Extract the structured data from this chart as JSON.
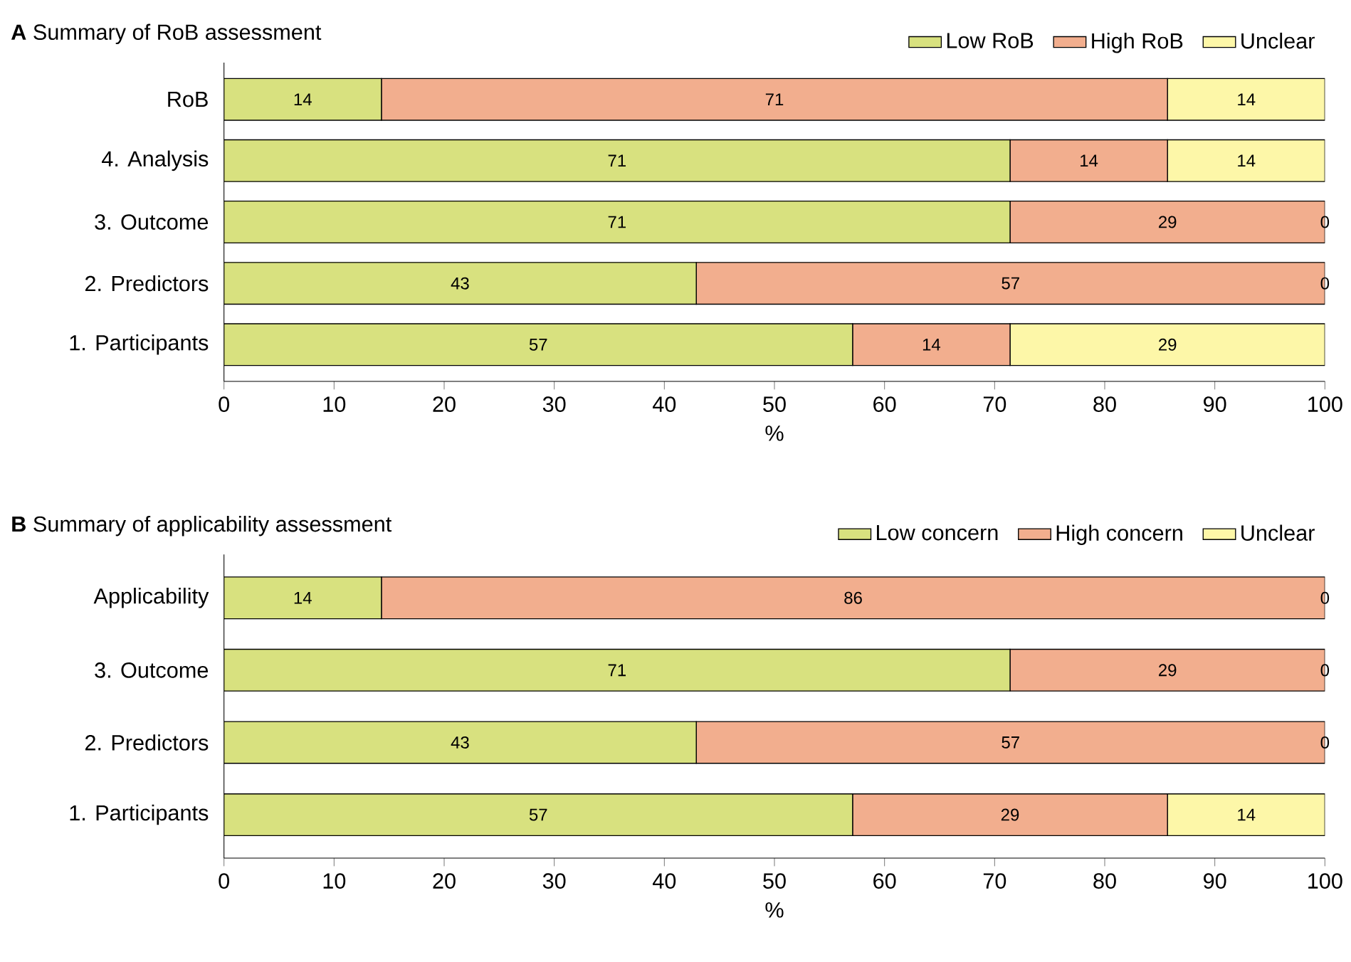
{
  "chart_data": [
    {
      "type": "bar",
      "orientation": "horizontal",
      "stacked": true,
      "title": "**A** Summary of RoB assessment",
      "xlabel": "%",
      "legend": "top right",
      "categories": [
        "RoB",
        "4. Analysis",
        "3. Outcome",
        "2. Predictors",
        "1. Participants"
      ],
      "xlim": [
        0,
        100
      ],
      "xticks": [
        0,
        10,
        20,
        30,
        40,
        50,
        60,
        70,
        80,
        90,
        100
      ],
      "series": [
        {
          "name": "Low RoB",
          "color": "#d8e17f",
          "values": [
            14.3,
            71.4,
            71.4,
            42.9,
            57.1
          ],
          "value_labels": [
            "14",
            "71",
            "71",
            "43",
            "57"
          ]
        },
        {
          "name": "High RoB",
          "color": "#f2ae8e",
          "values": [
            71.4,
            14.3,
            28.6,
            57.1,
            14.3
          ],
          "value_labels": [
            "71",
            "14",
            "29",
            "57",
            "14"
          ]
        },
        {
          "name": "Unclear",
          "color": "#fdf7a8",
          "values": [
            14.3,
            14.3,
            0,
            0,
            28.6
          ],
          "value_labels": [
            "14",
            "14",
            "0",
            "0",
            "29"
          ]
        }
      ]
    },
    {
      "type": "bar",
      "orientation": "horizontal",
      "stacked": true,
      "title": "**B** Summary of applicability assessment",
      "xlabel": "%",
      "legend": "top right",
      "categories": [
        "Applicability",
        "3. Outcome",
        "2. Predictors",
        "1. Participants"
      ],
      "xlim": [
        0,
        100
      ],
      "xticks": [
        0,
        10,
        20,
        30,
        40,
        50,
        60,
        70,
        80,
        90,
        100
      ],
      "series": [
        {
          "name": "Low concern",
          "color": "#d8e17f",
          "values": [
            14.3,
            71.4,
            42.9,
            57.1
          ],
          "value_labels": [
            "14",
            "71",
            "43",
            "57"
          ]
        },
        {
          "name": "High concern",
          "color": "#f2ae8e",
          "values": [
            85.7,
            28.6,
            57.1,
            28.6
          ],
          "value_labels": [
            "86",
            "29",
            "57",
            "29"
          ]
        },
        {
          "name": "Unclear",
          "color": "#fdf7a8",
          "values": [
            0,
            0,
            0,
            14.3
          ],
          "value_labels": [
            "0",
            "0",
            "0",
            "14"
          ]
        }
      ]
    }
  ]
}
